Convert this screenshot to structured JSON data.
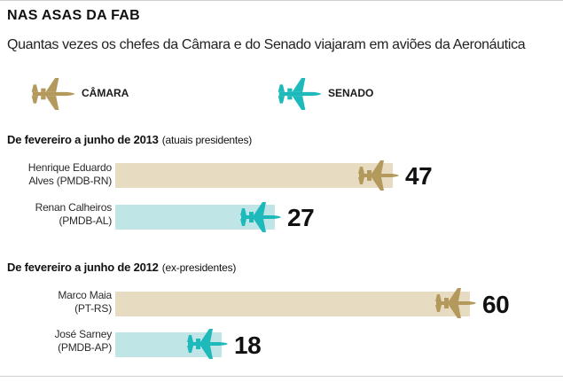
{
  "title": "NAS ASAS DA FAB",
  "subtitle": "Quantas vezes os chefes da Câmara e do Senado viajaram em aviões da Aeronáutica",
  "colors": {
    "camara": "#b39a5c",
    "camara_bar": "#e7dcc2",
    "senado": "#1eb9bb",
    "senado_bar": "#bfe5e7"
  },
  "legend": {
    "camara": {
      "label": "CÂMARA",
      "icon": "plane-icon-camara"
    },
    "senado": {
      "label": "SENADO",
      "icon": "plane-icon-senado"
    }
  },
  "chart_data": {
    "type": "bar",
    "orientation": "horizontal",
    "title": "NAS ASAS DA FAB",
    "subtitle": "Quantas vezes os chefes da Câmara e do Senado viajaram em aviões da Aeronáutica",
    "xlim": [
      0,
      63
    ],
    "sections": [
      {
        "label": "De fevereiro a junho de 2013",
        "note": "(atuais presidentes)",
        "rows": [
          {
            "name": "Henrique Eduardo",
            "party": "Alves (PMDB-RN)",
            "house": "camara",
            "value": 47
          },
          {
            "name": "Renan Calheiros",
            "party": "(PMDB-AL)",
            "house": "senado",
            "value": 27
          }
        ]
      },
      {
        "label": "De fevereiro a junho de 2012",
        "note": "(ex-presidentes)",
        "rows": [
          {
            "name": "Marco Maia",
            "party": "(PT-RS)",
            "house": "camara",
            "value": 60
          },
          {
            "name": "José Sarney",
            "party": "(PMDB-AP)",
            "house": "senado",
            "value": 18
          }
        ]
      }
    ]
  }
}
